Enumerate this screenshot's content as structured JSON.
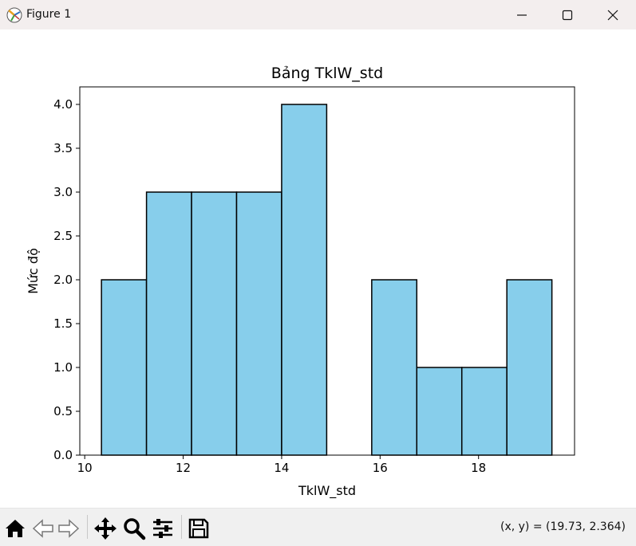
{
  "window": {
    "title": "Figure 1",
    "icons": [
      "matplotlib-icon",
      "minimize-icon",
      "maximize-icon",
      "close-icon"
    ]
  },
  "toolbar": {
    "icons": [
      "home-icon",
      "back-icon",
      "forward-icon",
      "pan-icon",
      "zoom-icon",
      "configure-subplots-icon",
      "save-icon"
    ],
    "coords": "(x, y) = (19.73, 2.364)"
  },
  "chart_data": {
    "type": "bar",
    "title": "Bảng TklW_std",
    "xlabel": "TklW_std",
    "ylabel": "Mức độ",
    "bin_edges": [
      10.34,
      11.255,
      12.17,
      13.085,
      14.0,
      14.915,
      15.83,
      16.745,
      17.66,
      18.575,
      19.49
    ],
    "values": [
      2,
      3,
      3,
      3,
      4,
      0,
      2,
      1,
      1,
      2
    ],
    "xlim": [
      9.9,
      19.95
    ],
    "ylim": [
      0,
      4.2
    ],
    "xticks": [
      10,
      12,
      14,
      16,
      18
    ],
    "yticks": [
      0.0,
      0.5,
      1.0,
      1.5,
      2.0,
      2.5,
      3.0,
      3.5,
      4.0
    ],
    "xtick_labels": [
      "10",
      "12",
      "14",
      "16",
      "18"
    ],
    "ytick_labels": [
      "0.0",
      "0.5",
      "1.0",
      "1.5",
      "2.0",
      "2.5",
      "3.0",
      "3.5",
      "4.0"
    ],
    "bar_color": "#87ceeb",
    "edge_color": "#000000",
    "grid": false,
    "legend": "none"
  }
}
